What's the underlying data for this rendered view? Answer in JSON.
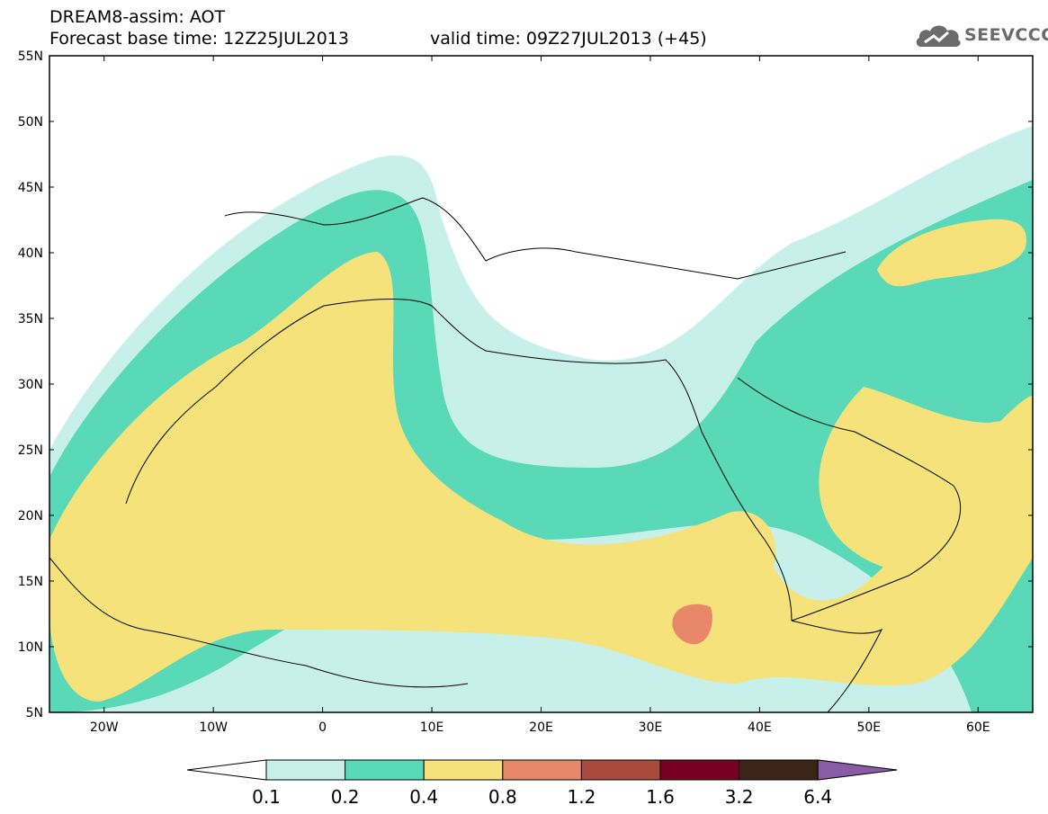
{
  "header": {
    "title_line1": "DREAM8-assim: AOT",
    "title_line2": "Forecast base time: 12Z25JUL2013",
    "valid_time": "valid time: 09Z27JUL2013 (+45)"
  },
  "logo": {
    "text": "SEEVCCC",
    "icon": "cloud-icon"
  },
  "axes": {
    "lat_labels": [
      "55N",
      "50N",
      "45N",
      "40N",
      "35N",
      "30N",
      "25N",
      "20N",
      "15N",
      "10N",
      "5N"
    ],
    "lon_labels": [
      "20W",
      "10W",
      "0",
      "10E",
      "20E",
      "30E",
      "40E",
      "50E",
      "60E"
    ]
  },
  "colorbar": {
    "ticks": [
      "0.1",
      "0.2",
      "0.4",
      "0.8",
      "1.2",
      "1.6",
      "3.2",
      "6.4"
    ],
    "colors": [
      "#ffffff",
      "#c8f0ea",
      "#5ad9b8",
      "#f5e27a",
      "#e9876a",
      "#a84a3c",
      "#780020",
      "#3c2418",
      "#8a5ca8"
    ]
  },
  "map": {
    "region": "North Africa, Mediterranean and Middle East",
    "lon_range": [
      -25,
      65
    ],
    "lat_range": [
      5,
      55
    ],
    "field": "Aerosol Optical Thickness",
    "colors": {
      "very_low": "#c8f0ea",
      "low": "#5ad9b8",
      "medium": "#f5e27a",
      "high": "#e9876a"
    }
  }
}
